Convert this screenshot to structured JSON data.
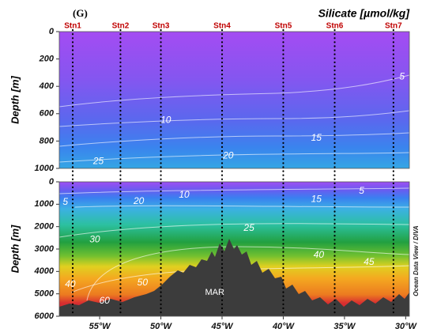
{
  "panel_tag": "(G)",
  "title": "Silicate [µmol/kg]",
  "watermark": "Ocean Data View / DIVA",
  "stations": [
    {
      "name": "Stn1",
      "lon": -57.2
    },
    {
      "name": "Stn2",
      "lon": -53.3
    },
    {
      "name": "Stn3",
      "lon": -50
    },
    {
      "name": "Stn4",
      "lon": -45
    },
    {
      "name": "Stn5",
      "lon": -40
    },
    {
      "name": "Stn6",
      "lon": -35.8
    },
    {
      "name": "Stn7",
      "lon": -31
    }
  ],
  "chart_data": [
    {
      "type": "contour",
      "ylabel": "Depth [m]",
      "xlim": [
        -58.3,
        -29.7
      ],
      "ylim": [
        0,
        1000
      ],
      "yticks": [
        0,
        200,
        400,
        600,
        800,
        1000
      ],
      "contour_labels": [
        {
          "value": 5,
          "lon": -30.3,
          "depth": 330
        },
        {
          "value": 10,
          "lon": -49.6,
          "depth": 650
        },
        {
          "value": 15,
          "lon": -37.3,
          "depth": 780
        },
        {
          "value": 20,
          "lon": -44.5,
          "depth": 910
        },
        {
          "value": 25,
          "lon": -55.1,
          "depth": 950
        }
      ]
    },
    {
      "type": "contour",
      "ylabel": "Depth [m]",
      "xlim": [
        -58.3,
        -29.7
      ],
      "ylim": [
        0,
        6000
      ],
      "yticks": [
        0,
        1000,
        2000,
        3000,
        4000,
        5000,
        6000
      ],
      "xticks": [
        {
          "value": -55,
          "label": "55°W"
        },
        {
          "value": -50,
          "label": "50°W"
        },
        {
          "value": -45,
          "label": "45°W"
        },
        {
          "value": -40,
          "label": "40°W"
        },
        {
          "value": -35,
          "label": "35°W"
        },
        {
          "value": -30,
          "label": "30°W"
        }
      ],
      "contour_labels": [
        {
          "value": 5,
          "lon": -33.6,
          "depth": 420
        },
        {
          "value": 10,
          "lon": -48.1,
          "depth": 600
        },
        {
          "value": 15,
          "lon": -37.3,
          "depth": 780
        },
        {
          "value": 20,
          "lon": -51.8,
          "depth": 880
        },
        {
          "value": 5,
          "lon": -57.8,
          "depth": 920
        },
        {
          "value": 25,
          "lon": -42.8,
          "depth": 2080
        },
        {
          "value": 30,
          "lon": -55.4,
          "depth": 2580
        },
        {
          "value": 40,
          "lon": -37.1,
          "depth": 3280
        },
        {
          "value": 45,
          "lon": -33,
          "depth": 3600
        },
        {
          "value": 40,
          "lon": -57.4,
          "depth": 4590
        },
        {
          "value": 50,
          "lon": -51.5,
          "depth": 4520
        },
        {
          "value": 60,
          "lon": -54.6,
          "depth": 5330
        }
      ],
      "annotations": [
        {
          "text": "MAR",
          "lon": -45.6,
          "depth": 4940
        }
      ]
    }
  ]
}
